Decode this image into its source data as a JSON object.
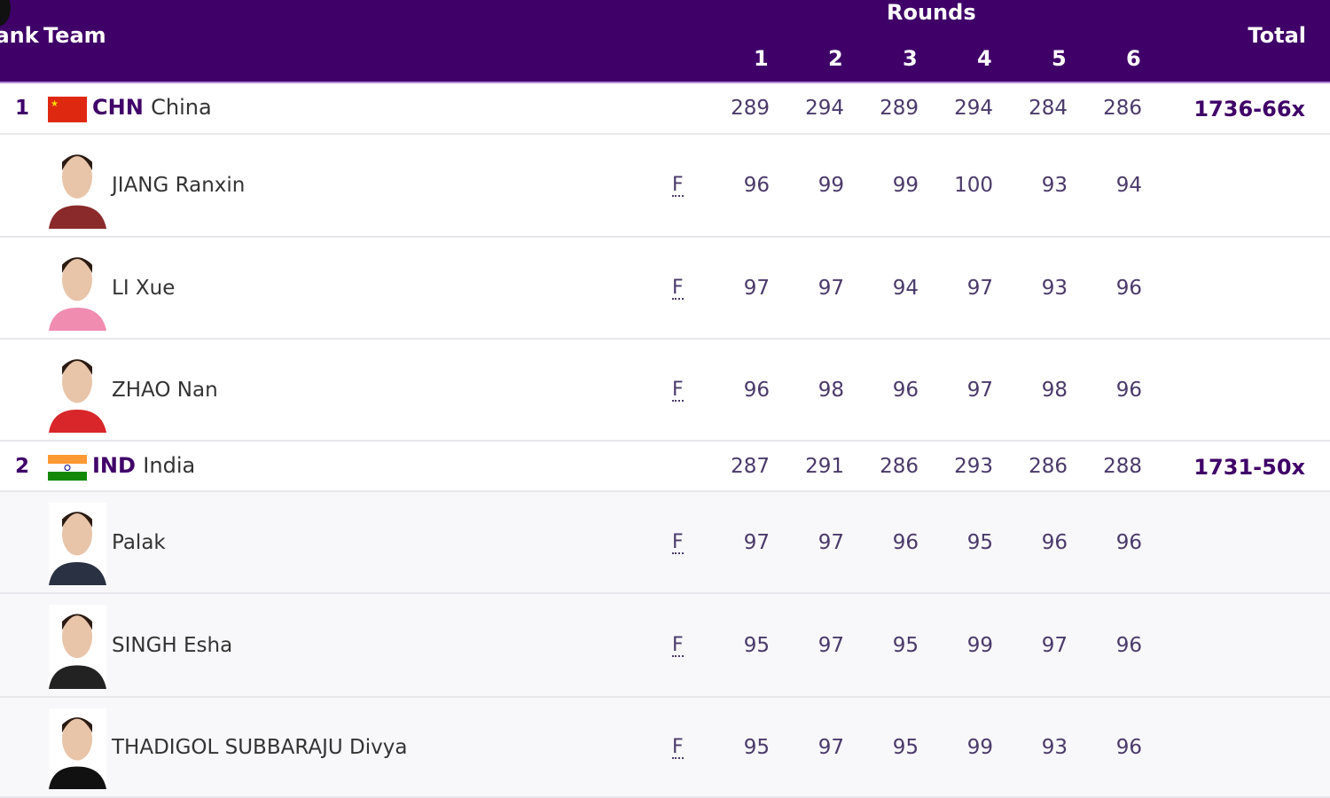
{
  "header": {
    "rank": "Rank",
    "team": "Team",
    "rounds": "Rounds",
    "round_nums": [
      "1",
      "2",
      "3",
      "4",
      "5",
      "6"
    ],
    "total": "Total"
  },
  "colors": {
    "header_bg": "#3f0068",
    "accent": "#3f0068"
  },
  "teams": [
    {
      "rank": "1",
      "code": "CHN",
      "name": "China",
      "flag": "china-flag",
      "rounds": [
        "289",
        "294",
        "289",
        "294",
        "284",
        "286"
      ],
      "total": "1736-66x",
      "athletes": [
        {
          "name": "JIANG Ranxin",
          "mark": "F",
          "rounds": [
            "96",
            "99",
            "99",
            "100",
            "93",
            "94"
          ]
        },
        {
          "name": "LI Xue",
          "mark": "F",
          "rounds": [
            "97",
            "97",
            "94",
            "97",
            "93",
            "96"
          ]
        },
        {
          "name": "ZHAO Nan",
          "mark": "F",
          "rounds": [
            "96",
            "98",
            "96",
            "97",
            "98",
            "96"
          ]
        }
      ]
    },
    {
      "rank": "2",
      "code": "IND",
      "name": "India",
      "flag": "india-flag",
      "rounds": [
        "287",
        "291",
        "286",
        "293",
        "286",
        "288"
      ],
      "total": "1731-50x",
      "athletes": [
        {
          "name": "Palak",
          "mark": "F",
          "rounds": [
            "97",
            "97",
            "96",
            "95",
            "96",
            "96"
          ]
        },
        {
          "name": "SINGH Esha",
          "mark": "F",
          "rounds": [
            "95",
            "97",
            "95",
            "99",
            "97",
            "96"
          ]
        },
        {
          "name": "THADIGOL SUBBARAJU Divya",
          "mark": "F",
          "rounds": [
            "95",
            "97",
            "95",
            "99",
            "93",
            "96"
          ]
        }
      ]
    }
  ]
}
